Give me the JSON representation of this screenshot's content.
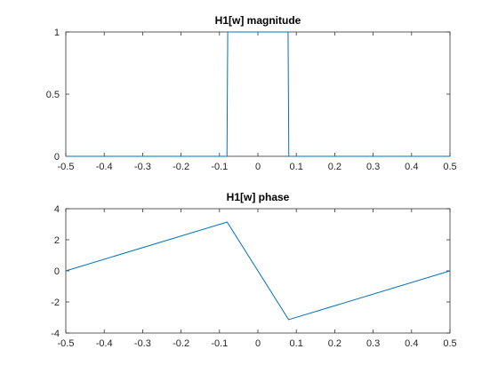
{
  "chart_data": [
    {
      "type": "line",
      "title": "H1[w] magnitude",
      "xlabel": "",
      "ylabel": "",
      "xlim": [
        -0.5,
        0.5
      ],
      "ylim": [
        0,
        1
      ],
      "xticks": [
        -0.5,
        -0.4,
        -0.3,
        -0.2,
        -0.1,
        0,
        0.1,
        0.2,
        0.3,
        0.4,
        0.5
      ],
      "xtick_labels": [
        "-0.5",
        "-0.4",
        "-0.3",
        "-0.2",
        "-0.1",
        "0",
        "0.1",
        "0.2",
        "0.3",
        "0.4",
        "0.5"
      ],
      "yticks": [
        0,
        0.5,
        1
      ],
      "ytick_labels": [
        "0",
        "0.5",
        "1"
      ],
      "grid": false,
      "series": [
        {
          "color": "#0072BD",
          "x": [
            -0.5,
            -0.0805,
            -0.0795,
            -0.0785,
            0.0785,
            0.0795,
            0.0805,
            0.5
          ],
          "y": [
            0,
            0,
            0.5,
            1,
            1,
            0.5,
            0,
            0
          ]
        }
      ]
    },
    {
      "type": "line",
      "title": "H1[w] phase",
      "xlabel": "",
      "ylabel": "",
      "xlim": [
        -0.5,
        0.5
      ],
      "ylim": [
        -4,
        4
      ],
      "xticks": [
        -0.5,
        -0.4,
        -0.3,
        -0.2,
        -0.1,
        0,
        0.1,
        0.2,
        0.3,
        0.4,
        0.5
      ],
      "xtick_labels": [
        "-0.5",
        "-0.4",
        "-0.3",
        "-0.2",
        "-0.1",
        "0",
        "0.1",
        "0.2",
        "0.3",
        "0.4",
        "0.5"
      ],
      "yticks": [
        -4,
        -2,
        0,
        2,
        4
      ],
      "ytick_labels": [
        "-4",
        "-2",
        "0",
        "2",
        "4"
      ],
      "grid": false,
      "series": [
        {
          "color": "#0072BD",
          "x": [
            -0.5,
            -0.08,
            0.08,
            0.5
          ],
          "y": [
            0,
            3.14,
            -3.14,
            0
          ]
        }
      ]
    }
  ]
}
